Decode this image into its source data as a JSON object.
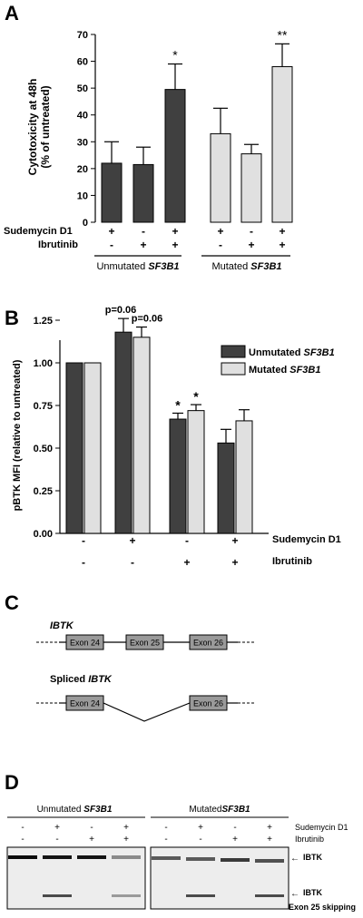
{
  "panels": {
    "a": {
      "letter": "A"
    },
    "b": {
      "letter": "B"
    },
    "c": {
      "letter": "C"
    },
    "d": {
      "letter": "D"
    }
  },
  "chart_data": [
    {
      "type": "bar",
      "panel": "A",
      "ylabel": "Cytotoxicity at 48h",
      "ylabel2": "(% of untreated)",
      "ylim": [
        0,
        70
      ],
      "yticks": [
        "0",
        "10",
        "20",
        "30",
        "40",
        "50",
        "60",
        "70"
      ],
      "row_labels": [
        "Sudemycin D1",
        "Ibrutinib"
      ],
      "groups": [
        {
          "label": "Unmutated SF3B1",
          "label_plain": "Unmutated ",
          "label_italic": "SF3B1",
          "color": "#404040",
          "bars": [
            {
              "value": 22,
              "error": 8,
              "sudemycin": "+",
              "ibrutinib": "-",
              "sig": ""
            },
            {
              "value": 21.5,
              "error": 6.5,
              "sudemycin": "-",
              "ibrutinib": "+",
              "sig": ""
            },
            {
              "value": 49.5,
              "error": 9.5,
              "sudemycin": "+",
              "ibrutinib": "+",
              "sig": "*"
            }
          ]
        },
        {
          "label": "Mutated SF3B1",
          "label_plain": "Mutated ",
          "label_italic": "SF3B1",
          "color": "#e0e0e0",
          "bars": [
            {
              "value": 33,
              "error": 9.5,
              "sudemycin": "+",
              "ibrutinib": "-",
              "sig": ""
            },
            {
              "value": 25.5,
              "error": 3.5,
              "sudemycin": "-",
              "ibrutinib": "+",
              "sig": ""
            },
            {
              "value": 58,
              "error": 8.5,
              "sudemycin": "+",
              "ibrutinib": "+",
              "sig": "**"
            }
          ]
        }
      ]
    },
    {
      "type": "bar",
      "panel": "B",
      "ylabel": "pBTK MFI (relative to untreated)",
      "ylim": [
        0,
        1.25
      ],
      "yticks": [
        "0.00",
        "0.25",
        "0.50",
        "0.75",
        "1.00",
        "1.25"
      ],
      "row_labels": [
        "Sudemycin D1",
        "Ibrutinib"
      ],
      "sudemycin": [
        "-",
        "+",
        "-",
        "+"
      ],
      "ibrutinib": [
        "-",
        "-",
        "+",
        "+"
      ],
      "series": [
        {
          "name": "Unmutated SF3B1",
          "name_plain": "Unmutated ",
          "name_italic": "SF3B1",
          "color": "#404040",
          "values": [
            1.0,
            1.18,
            0.67,
            0.53
          ],
          "errors": [
            0,
            0.08,
            0.035,
            0.08
          ],
          "annotations": [
            "",
            "p=0.06",
            "*",
            ""
          ]
        },
        {
          "name": "Mutated SF3B1",
          "name_plain": "Mutated ",
          "name_italic": "SF3B1",
          "color": "#e0e0e0",
          "values": [
            1.0,
            1.15,
            0.72,
            0.66
          ],
          "errors": [
            0,
            0.06,
            0.035,
            0.065
          ],
          "annotations": [
            "",
            "p=0.06",
            "*",
            ""
          ]
        }
      ]
    }
  ],
  "diagram_c": {
    "gene_label": "IBTK",
    "spliced_prefix": "Spliced ",
    "spliced_gene": "IBTK",
    "exons": [
      "Exon 24",
      "Exon 25",
      "Exon 26"
    ],
    "spliced_exons": [
      "Exon 24",
      "Exon 26"
    ]
  },
  "gel_d": {
    "left_title_plain": "Unmutated ",
    "left_title_italic": "SF3B1",
    "right_title_plain": "Mutated",
    "right_title_italic": "SF3B1",
    "sudemycin_row": [
      "-",
      "+",
      "-",
      "+"
    ],
    "ibrutinib_row": [
      "-",
      "-",
      "+",
      "+"
    ],
    "row_labels": [
      "Sudemycin D1",
      "Ibrutinib"
    ],
    "band_top_label": "IBTK",
    "band_bottom_label": "IBTK",
    "band_bottom_sub": "Exon 25 skipping"
  }
}
